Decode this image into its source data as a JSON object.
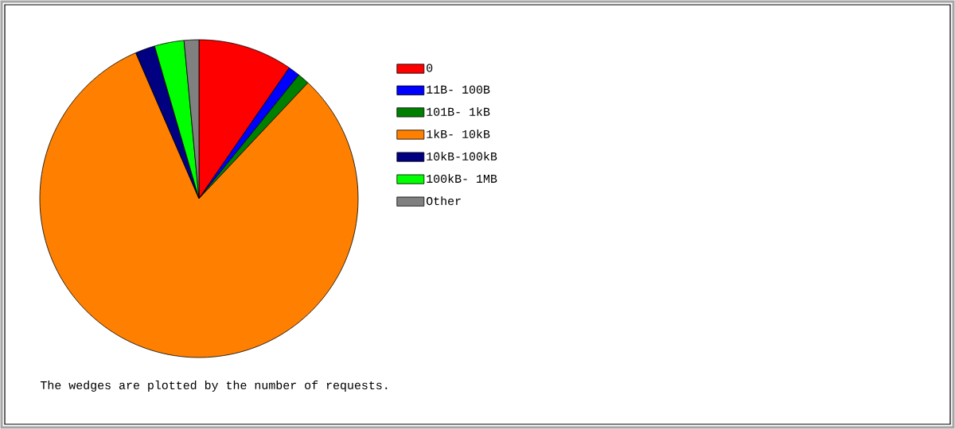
{
  "chart_data": {
    "type": "pie",
    "categories": [
      "0",
      "11B- 100B",
      "101B- 1kB",
      "1kB- 10kB",
      "10kB-100kB",
      "100kB- 1MB",
      "Other"
    ],
    "values": [
      9.6,
      1.2,
      1.2,
      81.5,
      2,
      3,
      1.5
    ],
    "colors": [
      "#ff0000",
      "#0000ff",
      "#008000",
      "#ff8000",
      "#000080",
      "#00ff00",
      "#808080"
    ],
    "legend": "right",
    "annotations": [
      "The wedges are plotted by the number of requests."
    ]
  }
}
